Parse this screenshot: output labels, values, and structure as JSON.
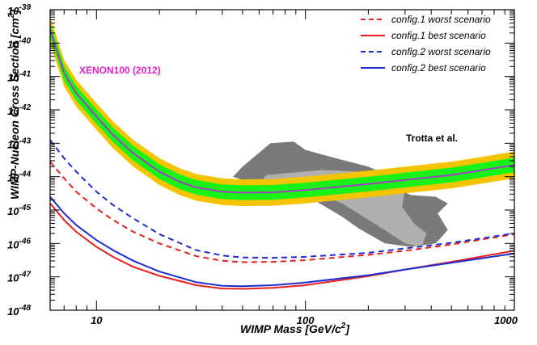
{
  "chart_data": {
    "type": "line",
    "title": "",
    "xlabel": "WIMP Mass [GeV/c",
    "xlabel_sup": "2",
    "xlabel_tail": "]",
    "ylabel": "WIMP-Nucleon Cross Section [cm",
    "ylabel_sup": "2",
    "ylabel_tail": "]",
    "xscale": "log",
    "yscale": "log",
    "xlim": [
      6,
      1000
    ],
    "ylim_exp": [
      -48,
      -39
    ],
    "x_ticks": [
      {
        "value": 10,
        "label": "10"
      },
      {
        "value": 100,
        "label": "100"
      },
      {
        "value": 1000,
        "label": "1000"
      }
    ],
    "y_ticks": [
      {
        "exp": -39,
        "base": "10",
        "sup": "-39"
      },
      {
        "exp": -40,
        "base": "10",
        "sup": "-40"
      },
      {
        "exp": -41,
        "base": "10",
        "sup": "-41"
      },
      {
        "exp": -42,
        "base": "10",
        "sup": "-42"
      },
      {
        "exp": -43,
        "base": "10",
        "sup": "-43"
      },
      {
        "exp": -44,
        "base": "10",
        "sup": "-44"
      },
      {
        "exp": -45,
        "base": "10",
        "sup": "-45"
      },
      {
        "exp": -46,
        "base": "10",
        "sup": "-46"
      },
      {
        "exp": -47,
        "base": "10",
        "sup": "-47"
      },
      {
        "exp": -48,
        "base": "10",
        "sup": "-48"
      }
    ],
    "legend_position": "top-right",
    "legend": [
      {
        "label": "config.1 worst scenario",
        "color": "#e8201e",
        "dash": true
      },
      {
        "label": "config.1 best scenario",
        "color": "#e8201e",
        "dash": false
      },
      {
        "label": "config.2 worst scenario",
        "color": "#1f2ccf",
        "dash": true
      },
      {
        "label": "config.2 best scenario",
        "color": "#1f2ccf",
        "dash": false
      }
    ],
    "series": [
      {
        "name": "config.1 worst scenario",
        "color": "#e8201e",
        "dash": true,
        "x": [
          6,
          7,
          8,
          10,
          12,
          15,
          20,
          30,
          40,
          50,
          70,
          100,
          200,
          300,
          500,
          1000
        ],
        "log_y": [
          -43.55,
          -44.05,
          -44.45,
          -44.95,
          -45.3,
          -45.65,
          -46.0,
          -46.38,
          -46.52,
          -46.56,
          -46.55,
          -46.5,
          -46.34,
          -46.22,
          -46.03,
          -45.72
        ]
      },
      {
        "name": "config.1 best scenario",
        "color": "#e8201e",
        "dash": false,
        "x": [
          6,
          7,
          8,
          10,
          12,
          15,
          20,
          30,
          40,
          50,
          70,
          100,
          200,
          300,
          500,
          1000
        ],
        "log_y": [
          -44.8,
          -45.3,
          -45.65,
          -46.1,
          -46.4,
          -46.7,
          -46.97,
          -47.25,
          -47.35,
          -47.36,
          -47.33,
          -47.25,
          -46.98,
          -46.78,
          -46.55,
          -46.22
        ]
      },
      {
        "name": "config.2 worst scenario",
        "color": "#1f2ccf",
        "dash": true,
        "x": [
          6,
          7,
          8,
          10,
          12,
          15,
          20,
          30,
          40,
          50,
          70,
          100,
          200,
          300,
          500,
          1000
        ],
        "log_y": [
          -42.9,
          -43.45,
          -43.85,
          -44.45,
          -44.85,
          -45.25,
          -45.72,
          -46.2,
          -46.36,
          -46.42,
          -46.43,
          -46.4,
          -46.28,
          -46.15,
          -45.98,
          -45.7
        ]
      },
      {
        "name": "config.2 best scenario",
        "color": "#1f2ccf",
        "dash": false,
        "x": [
          6,
          7,
          8,
          10,
          12,
          15,
          20,
          30,
          40,
          50,
          70,
          100,
          200,
          300,
          500,
          1000
        ],
        "log_y": [
          -44.6,
          -45.1,
          -45.45,
          -45.9,
          -46.2,
          -46.52,
          -46.84,
          -47.16,
          -47.27,
          -47.28,
          -47.25,
          -47.17,
          -46.95,
          -46.78,
          -46.58,
          -46.3
        ]
      }
    ],
    "band": {
      "name": "XENON100 (2012)",
      "label_color": "#e020d0",
      "x": [
        6,
        7,
        8,
        10,
        12,
        15,
        20,
        25,
        30,
        40,
        50,
        70,
        100,
        200,
        300,
        500,
        1000
      ],
      "median": [
        -39.6,
        -40.9,
        -41.5,
        -42.2,
        -42.75,
        -43.3,
        -43.85,
        -44.15,
        -44.32,
        -44.45,
        -44.48,
        -44.47,
        -44.4,
        -44.22,
        -44.1,
        -43.95,
        -43.65
      ],
      "sigma1": 0.22,
      "sigma2": 0.4,
      "median_color": "#a040c0",
      "sigma1_color": "#19f219",
      "sigma2_color": "#f5c400"
    },
    "region": {
      "name": "Trotta et al.",
      "outer_color": "#7a7a7a",
      "inner_color": "#b0b0b0",
      "outer": [
        [
          68,
          -43.0
        ],
        [
          88,
          -42.95
        ],
        [
          100,
          -43.2
        ],
        [
          140,
          -43.45
        ],
        [
          200,
          -43.7
        ],
        [
          260,
          -44.0
        ],
        [
          280,
          -44.4
        ],
        [
          320,
          -44.55
        ],
        [
          420,
          -44.6
        ],
        [
          480,
          -44.8
        ],
        [
          430,
          -45.1
        ],
        [
          480,
          -45.6
        ],
        [
          420,
          -46.0
        ],
        [
          320,
          -46.1
        ],
        [
          240,
          -46.0
        ],
        [
          180,
          -45.55
        ],
        [
          150,
          -45.2
        ],
        [
          110,
          -44.7
        ],
        [
          90,
          -44.35
        ],
        [
          60,
          -44.25
        ],
        [
          45,
          -44.0
        ],
        [
          50,
          -43.7
        ]
      ],
      "inner": [
        [
          65,
          -43.95
        ],
        [
          120,
          -43.8
        ],
        [
          180,
          -43.85
        ],
        [
          240,
          -43.95
        ],
        [
          300,
          -44.35
        ],
        [
          290,
          -44.9
        ],
        [
          330,
          -45.4
        ],
        [
          380,
          -45.7
        ],
        [
          360,
          -46.1
        ],
        [
          300,
          -46.0
        ],
        [
          240,
          -45.6
        ],
        [
          190,
          -45.2
        ],
        [
          150,
          -44.8
        ],
        [
          110,
          -44.45
        ],
        [
          75,
          -44.25
        ],
        [
          62,
          -44.1
        ]
      ]
    }
  }
}
